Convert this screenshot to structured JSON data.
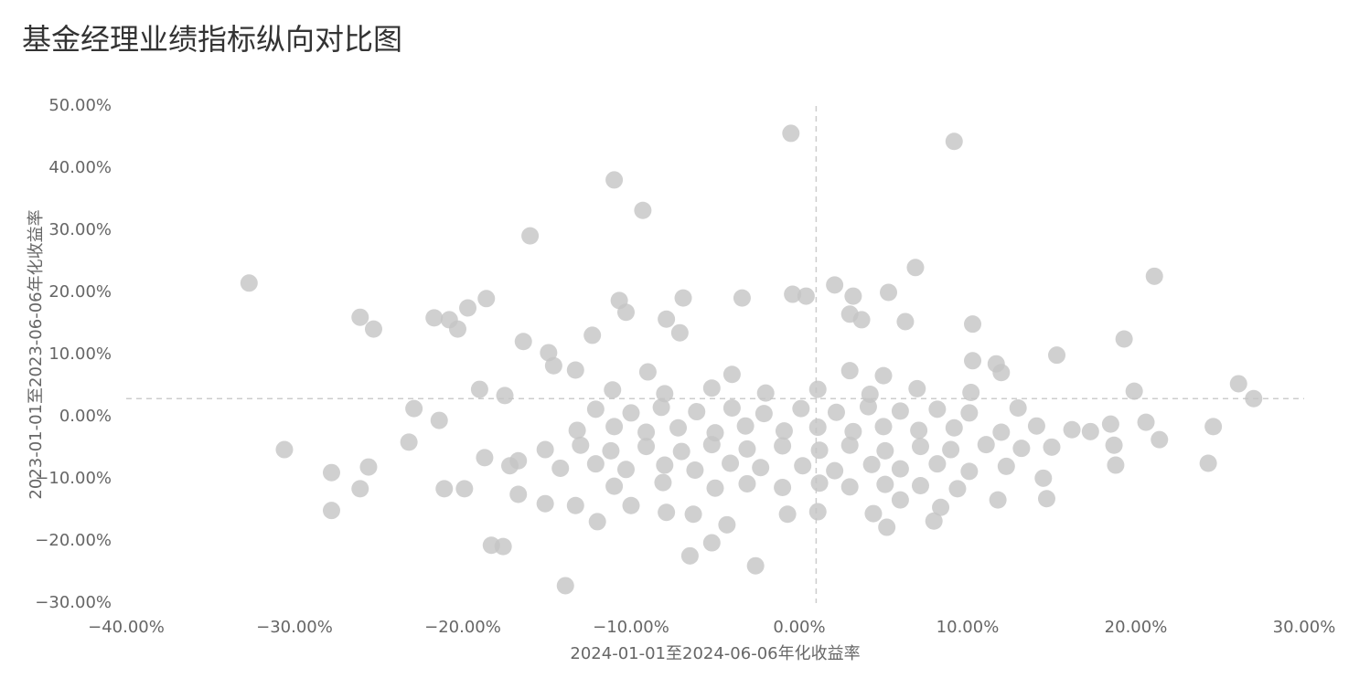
{
  "chart_data": {
    "type": "scatter",
    "title": "基金经理业绩指标纵向对比图",
    "x_label": "2024-01-01至2024-06-06年化收益率",
    "y_label": "2023-01-01至2023-06-06年化收益率",
    "color": "#c4c4c4",
    "xlim": [
      -40,
      30
    ],
    "ylim": [
      -30,
      50
    ],
    "xticks": [
      {
        "value": -40,
        "label": "−40.00%"
      },
      {
        "value": -30,
        "label": "−30.00%"
      },
      {
        "value": -20,
        "label": "−20.00%"
      },
      {
        "value": -10,
        "label": "−10.00%"
      },
      {
        "value": 0,
        "label": "0.00%"
      },
      {
        "value": 10,
        "label": "10.00%"
      },
      {
        "value": 20,
        "label": "20.00%"
      },
      {
        "value": 30,
        "label": "30.00%"
      }
    ],
    "yticks": [
      {
        "value": -30,
        "label": "−30.00%"
      },
      {
        "value": -20,
        "label": "−20.00%"
      },
      {
        "value": -10,
        "label": "−10.00%"
      },
      {
        "value": 0,
        "label": "0.00%"
      },
      {
        "value": 10,
        "label": "10.00%"
      },
      {
        "value": 20,
        "label": "20.00%"
      },
      {
        "value": 30,
        "label": "30.00%"
      },
      {
        "value": 40,
        "label": "40.00%"
      },
      {
        "value": 50,
        "label": "50.00%"
      }
    ],
    "ref_x": 1.0,
    "ref_y": 2.9,
    "x": [
      -32.7,
      -30.6,
      -27.8,
      -27.8,
      -26.1,
      -25.3,
      -26.1,
      -25.6,
      -23.2,
      -22.9,
      -21.7,
      -20.8,
      -20.3,
      -21.4,
      -21.1,
      -19.9,
      -19.7,
      -18.6,
      -19.0,
      -18.7,
      -18.3,
      -17.6,
      -17.5,
      -16.0,
      -13.9,
      -11.0,
      -9.3,
      -0.5,
      9.2,
      6.9,
      21.1,
      19.3,
      26.1,
      27.0,
      24.6,
      24.3,
      19.9,
      21.4,
      15.3,
      10.3,
      -2.6,
      -6.5,
      -5.2,
      -4.3,
      5.2,
      8.0,
      2.1,
      3.2,
      5.3,
      -0.4,
      0.4,
      -6.9,
      -3.4,
      -10.7,
      -10.3,
      18.5,
      18.7,
      18.8,
      20.6,
      17.3,
      14.5,
      14.7,
      11.8,
      9.4,
      8.4,
      11.7,
      10.3,
      6.3,
      3.7,
      3.0,
      -7.9,
      -7.1,
      -12.3,
      -16.4,
      -14.9,
      -14.6,
      -13.3,
      -16.7,
      -17.2,
      -16.7,
      -15.1,
      -13.3,
      -12.0,
      -10.0,
      -7.9,
      -6.3,
      -0.7,
      1.1,
      4.4,
      6.0,
      -14.2,
      -12.1,
      -10.3,
      -8.0,
      -6.2,
      -4.1,
      -2.3,
      0.2,
      2.1,
      4.3,
      6.0,
      8.2,
      10.1,
      12.3,
      -15.1,
      -13.0,
      -11.2,
      -9.1,
      -7.0,
      -5.2,
      -3.1,
      -1.0,
      1.2,
      3.0,
      5.1,
      7.2,
      9.0,
      11.1,
      13.2,
      15.0,
      -13.2,
      -11.0,
      -9.1,
      -7.2,
      -5.0,
      -3.2,
      -0.9,
      1.1,
      3.2,
      5.0,
      7.1,
      9.2,
      12.0,
      14.1,
      16.2,
      -12.1,
      -10.0,
      -8.2,
      -6.1,
      -4.0,
      -2.1,
      0.1,
      2.2,
      4.1,
      6.0,
      8.2,
      10.1,
      13.0,
      -11.1,
      -8.0,
      -5.2,
      -2.0,
      1.1,
      4.2,
      7.0,
      10.2,
      -11.0,
      -8.1,
      -5.0,
      -3.1,
      -1.0,
      1.2,
      3.0,
      5.1,
      7.2,
      -9.0,
      -4.0,
      3.0,
      5.0,
      12.0
    ],
    "values": [
      21.5,
      -5.3,
      -9.0,
      -15.1,
      16.0,
      14.1,
      -11.6,
      -8.1,
      -4.1,
      1.3,
      15.9,
      15.6,
      14.1,
      -0.6,
      -11.6,
      -11.6,
      17.5,
      19.0,
      4.4,
      -6.6,
      -20.7,
      -20.9,
      3.4,
      29.1,
      -27.2,
      38.1,
      33.2,
      45.6,
      44.3,
      24.0,
      22.6,
      12.5,
      5.3,
      2.9,
      -1.6,
      -7.5,
      4.1,
      -3.7,
      9.9,
      14.9,
      -24.0,
      -22.4,
      -20.3,
      -17.4,
      -17.8,
      -16.8,
      21.2,
      19.4,
      20.0,
      19.7,
      19.4,
      19.1,
      19.1,
      18.7,
      16.8,
      -1.2,
      -4.6,
      -7.8,
      -0.9,
      -2.4,
      -9.9,
      -13.2,
      -13.4,
      -11.6,
      -14.6,
      8.5,
      9.0,
      15.3,
      15.6,
      16.5,
      15.7,
      13.5,
      13.1,
      12.1,
      10.3,
      8.2,
      7.5,
      -7.1,
      -7.9,
      -12.5,
      -14.0,
      -14.3,
      -16.9,
      -14.3,
      -15.4,
      -15.7,
      -15.7,
      -15.3,
      -15.6,
      -13.4,
      -8.3,
      -7.6,
      -8.5,
      -7.8,
      -8.6,
      -7.5,
      -8.2,
      -7.9,
      -8.7,
      -7.7,
      -8.4,
      -7.6,
      -8.8,
      -8.0,
      -5.3,
      -4.6,
      -5.5,
      -4.8,
      -5.6,
      -4.5,
      -5.2,
      -4.7,
      -5.4,
      -4.6,
      -5.5,
      -4.8,
      -5.3,
      -4.5,
      -5.1,
      -4.9,
      -2.2,
      -1.6,
      -2.5,
      -1.8,
      -2.6,
      -1.5,
      -2.3,
      -1.7,
      -2.4,
      -1.6,
      -2.2,
      -1.8,
      -2.5,
      -1.5,
      -2.1,
      1.2,
      0.6,
      1.5,
      0.8,
      1.4,
      0.5,
      1.3,
      0.7,
      1.6,
      0.9,
      1.2,
      0.6,
      1.4,
      4.3,
      3.7,
      4.6,
      3.8,
      4.4,
      3.6,
      4.5,
      3.9,
      -11.2,
      -10.6,
      -11.5,
      -10.8,
      -11.4,
      -10.7,
      -11.3,
      -10.9,
      -11.1,
      7.2,
      6.8,
      7.4,
      6.6,
      7.1
    ]
  }
}
